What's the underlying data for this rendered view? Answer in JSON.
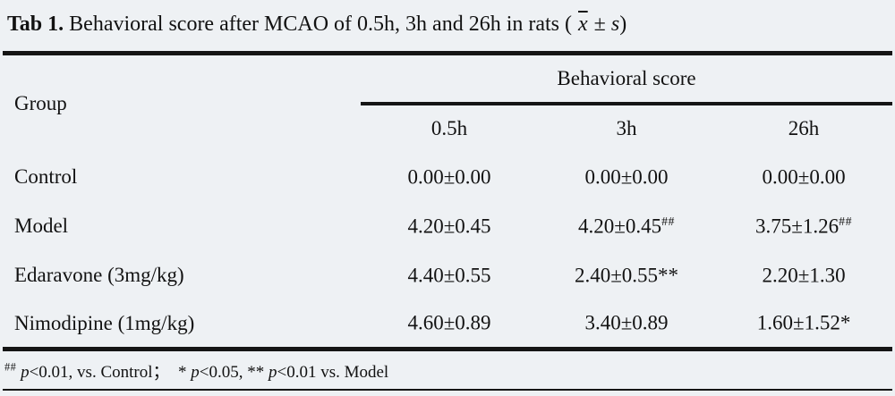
{
  "title": {
    "segments": [
      "Tab 1.",
      " Behavioral score after MCAO of 0.5h, 3h and 26h in rats ( ",
      "x",
      " ± ",
      "s",
      ")"
    ]
  },
  "table": {
    "group_header": "Group",
    "spanner": "Behavioral score",
    "columns": [
      "0.5h",
      "3h",
      "26h"
    ],
    "rows": [
      {
        "group": "Control",
        "values": [
          {
            "text": "0.00±0.00",
            "sup": ""
          },
          {
            "text": "0.00±0.00",
            "sup": ""
          },
          {
            "text": "0.00±0.00",
            "sup": ""
          }
        ]
      },
      {
        "group": "Model",
        "values": [
          {
            "text": "4.20±0.45",
            "sup": ""
          },
          {
            "text": "4.20±0.45",
            "sup": "##"
          },
          {
            "text": "3.75±1.26",
            "sup": "##"
          }
        ]
      },
      {
        "group": "Edaravone (3mg/kg)",
        "values": [
          {
            "text": "4.40±0.55",
            "sup": ""
          },
          {
            "text": "2.40±0.55**",
            "sup": ""
          },
          {
            "text": "2.20±1.30",
            "sup": ""
          }
        ]
      },
      {
        "group": "Nimodipine (1mg/kg)",
        "values": [
          {
            "text": "4.60±0.89",
            "sup": ""
          },
          {
            "text": "3.40±0.89",
            "sup": ""
          },
          {
            "text": "1.60±1.52*",
            "sup": ""
          }
        ]
      }
    ]
  },
  "footnote": {
    "segments": [
      "##",
      " p",
      "<0.01, vs. Control；  * ",
      "p",
      "<0.05, ** ",
      "p",
      "<0.01 vs. Model"
    ]
  },
  "colors": {
    "background": "#eef1f4",
    "text": "#121212",
    "rule": "#151515"
  }
}
